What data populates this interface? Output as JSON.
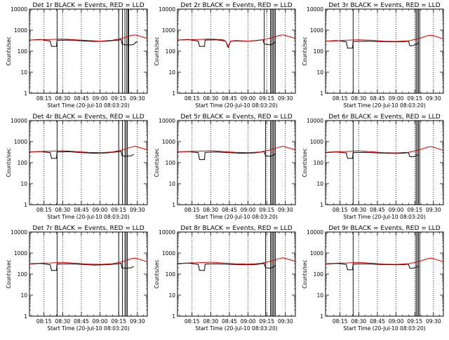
{
  "chart_data": [
    {
      "type": "line",
      "title": "Det 1r BLACK = Events, RED = LLD",
      "xlabel": "Start Time (20-Jul-10 08:03:20)",
      "ylabel": "Counts/sec",
      "ylim": [
        1,
        10000
      ],
      "yscale": "log",
      "yticks": [
        "1",
        "10",
        "100",
        "1000",
        "10000"
      ],
      "xticks": [
        "08:15",
        "08:30",
        "08:45",
        "09:00",
        "09:15",
        "09:30"
      ],
      "xlim_minutes": [
        3.333,
        98
      ],
      "series": [
        {
          "name": "Events",
          "color": "#000000",
          "x": [
            3.5,
            12,
            20,
            21,
            25,
            25.5,
            35,
            45,
            55,
            65,
            75,
            77,
            77.5,
            80,
            85,
            87,
            88,
            89,
            90
          ],
          "y": [
            340,
            360,
            300,
            170,
            170,
            330,
            340,
            310,
            290,
            300,
            340,
            360,
            230,
            200,
            200,
            210,
            240,
            280,
            260
          ]
        },
        {
          "name": "LLD",
          "color": "#dd0000",
          "x": [
            3.5,
            12,
            20,
            30,
            40,
            50,
            60,
            70,
            75,
            80,
            85,
            88,
            90,
            95,
            98
          ],
          "y": [
            340,
            350,
            360,
            380,
            350,
            320,
            300,
            330,
            380,
            450,
            560,
            600,
            560,
            460,
            400
          ]
        }
      ],
      "vlines_solid": [
        25.5,
        75,
        78,
        80,
        81.5,
        82.5,
        83
      ],
      "vlines_dotted": [
        15,
        30,
        45,
        60,
        75,
        90
      ]
    },
    {
      "type": "line",
      "title": "Det 2r BLACK = Events, RED = LLD",
      "xlabel": "Start Time (20-Jul-10 08:03:20)",
      "ylabel": "Counts/sec",
      "ylim": [
        1,
        10000
      ],
      "yscale": "log",
      "yticks": [
        "1",
        "10",
        "100",
        "1000",
        "10000"
      ],
      "xticks": [
        "08:15",
        "08:30",
        "08:45",
        "09:00",
        "09:15",
        "09:30"
      ],
      "xlim_minutes": [
        3.333,
        98
      ],
      "series": [
        {
          "name": "Events",
          "color": "#000000",
          "x": [
            3.5,
            12,
            20,
            21,
            25,
            25.5,
            35,
            42,
            44,
            46,
            50,
            60,
            72,
            73,
            78,
            80,
            82
          ],
          "y": [
            340,
            360,
            300,
            170,
            170,
            340,
            350,
            300,
            150,
            300,
            310,
            300,
            350,
            220,
            200,
            220,
            280
          ]
        },
        {
          "name": "LLD",
          "color": "#dd0000",
          "x": [
            3.5,
            12,
            20,
            30,
            40,
            42,
            44,
            46,
            50,
            60,
            70,
            75,
            80,
            85,
            88,
            90,
            95,
            98
          ],
          "y": [
            340,
            350,
            360,
            380,
            350,
            300,
            170,
            300,
            320,
            300,
            330,
            380,
            450,
            560,
            600,
            560,
            460,
            400
          ]
        }
      ],
      "vlines_solid": [
        73,
        78,
        79,
        80,
        81,
        82
      ],
      "vlines_dotted": [
        15,
        30,
        45,
        60,
        75,
        90
      ]
    },
    {
      "type": "line",
      "title": "Det 3r BLACK = Events, RED = LLD",
      "xlabel": "Start Time (20-Jul-10 08:03:20)",
      "ylabel": "Counts/sec",
      "ylim": [
        1,
        10000
      ],
      "yscale": "log",
      "yticks": [
        "1",
        "10",
        "100",
        "1000",
        "10000"
      ],
      "xticks": [
        "08:15",
        "08:30",
        "08:45",
        "09:00",
        "09:15",
        "09:30"
      ],
      "xlim_minutes": [
        3.333,
        98
      ],
      "series": [
        {
          "name": "Events",
          "color": "#000000",
          "x": [
            3.5,
            12,
            20,
            21,
            25,
            25.5,
            35,
            45,
            55,
            65,
            70,
            71,
            73,
            75,
            77,
            78
          ],
          "y": [
            300,
            320,
            280,
            140,
            140,
            290,
            300,
            290,
            280,
            280,
            300,
            180,
            180,
            200,
            220,
            250
          ]
        },
        {
          "name": "LLD",
          "color": "#dd0000",
          "x": [
            3.5,
            12,
            20,
            30,
            40,
            50,
            60,
            70,
            75,
            80,
            85,
            88,
            90,
            95,
            98
          ],
          "y": [
            300,
            310,
            330,
            350,
            330,
            300,
            290,
            310,
            360,
            430,
            540,
            580,
            540,
            440,
            380
          ]
        }
      ],
      "vlines_solid": [
        25.5,
        76,
        77,
        78,
        79
      ],
      "vlines_dotted": [
        15,
        30,
        45,
        60,
        75,
        90
      ]
    },
    {
      "type": "line",
      "title": "Det 4r BLACK = Events, RED = LLD",
      "xlabel": "Start Time (20-Jul-10 08:03:20)",
      "ylabel": "Counts/sec",
      "ylim": [
        1,
        10000
      ],
      "yscale": "log",
      "yticks": [
        "1",
        "10",
        "100",
        "1000",
        "10000"
      ],
      "xticks": [
        "08:15",
        "08:30",
        "08:45",
        "09:00",
        "09:15",
        "09:30"
      ],
      "xlim_minutes": [
        3.333,
        98
      ],
      "series": [
        {
          "name": "Events",
          "color": "#000000",
          "x": [
            3.5,
            12,
            20,
            21,
            25,
            25.5,
            35,
            45,
            55,
            65,
            75,
            77,
            77.5,
            80,
            85,
            87
          ],
          "y": [
            320,
            340,
            300,
            160,
            160,
            320,
            330,
            300,
            280,
            290,
            330,
            350,
            220,
            200,
            210,
            250
          ]
        },
        {
          "name": "LLD",
          "color": "#dd0000",
          "x": [
            3.5,
            12,
            20,
            30,
            40,
            50,
            60,
            70,
            75,
            80,
            85,
            88,
            90,
            95,
            98
          ],
          "y": [
            320,
            340,
            350,
            370,
            340,
            310,
            300,
            320,
            370,
            440,
            550,
            600,
            560,
            460,
            400
          ]
        }
      ],
      "vlines_solid": [
        25.5,
        75,
        78,
        80,
        81,
        82
      ],
      "vlines_dotted": [
        15,
        30,
        45,
        60,
        75,
        90
      ]
    },
    {
      "type": "line",
      "title": "Det 5r BLACK = Events, RED = LLD",
      "xlabel": "Start Time (20-Jul-10 08:03:20)",
      "ylabel": "Counts/sec",
      "ylim": [
        1,
        10000
      ],
      "yscale": "log",
      "yticks": [
        "1",
        "10",
        "100",
        "1000",
        "10000"
      ],
      "xticks": [
        "08:15",
        "08:30",
        "08:45",
        "09:00",
        "09:15",
        "09:30"
      ],
      "xlim_minutes": [
        3.333,
        98
      ],
      "series": [
        {
          "name": "Events",
          "color": "#000000",
          "x": [
            3.5,
            12,
            20,
            21,
            25,
            25.5,
            35,
            45,
            55,
            65,
            73,
            74,
            78,
            80,
            82
          ],
          "y": [
            320,
            340,
            300,
            140,
            140,
            310,
            320,
            300,
            280,
            290,
            330,
            210,
            200,
            220,
            270
          ]
        },
        {
          "name": "LLD",
          "color": "#dd0000",
          "x": [
            3.5,
            12,
            20,
            30,
            40,
            50,
            60,
            70,
            75,
            80,
            85,
            88,
            90,
            95,
            98
          ],
          "y": [
            320,
            340,
            350,
            370,
            340,
            310,
            300,
            320,
            370,
            440,
            550,
            600,
            560,
            460,
            400
          ]
        }
      ],
      "vlines_solid": [
        74,
        78,
        79,
        80,
        81,
        82
      ],
      "vlines_dotted": [
        15,
        30,
        45,
        60,
        75,
        90
      ]
    },
    {
      "type": "line",
      "title": "Det 6r BLACK = Events, RED = LLD",
      "xlabel": "Start Time (20-Jul-10 08:03:20)",
      "ylabel": "Counts/sec",
      "ylim": [
        1,
        10000
      ],
      "yscale": "log",
      "yticks": [
        "1",
        "10",
        "100",
        "1000",
        "10000"
      ],
      "xticks": [
        "08:15",
        "08:30",
        "08:45",
        "09:00",
        "09:15",
        "09:30"
      ],
      "xlim_minutes": [
        3.333,
        98
      ],
      "series": [
        {
          "name": "Events",
          "color": "#000000",
          "x": [
            3.5,
            12,
            20,
            21,
            25,
            25.5,
            35,
            45,
            55,
            65,
            70,
            71,
            74,
            76,
            78
          ],
          "y": [
            300,
            320,
            290,
            160,
            160,
            300,
            310,
            290,
            280,
            280,
            300,
            190,
            190,
            210,
            240
          ]
        },
        {
          "name": "LLD",
          "color": "#dd0000",
          "x": [
            3.5,
            12,
            20,
            30,
            40,
            50,
            60,
            70,
            75,
            80,
            85,
            88,
            90,
            95,
            98
          ],
          "y": [
            310,
            330,
            340,
            360,
            330,
            300,
            290,
            310,
            360,
            430,
            540,
            580,
            540,
            440,
            380
          ]
        }
      ],
      "vlines_solid": [
        25.5,
        76,
        77,
        78,
        79
      ],
      "vlines_dotted": [
        15,
        30,
        45,
        60,
        75,
        90
      ]
    },
    {
      "type": "line",
      "title": "Det 7r BLACK = Events, RED = LLD",
      "xlabel": "Start Time (20-Jul-10 08:03:20)",
      "ylabel": "Counts/sec",
      "ylim": [
        1,
        10000
      ],
      "yscale": "log",
      "yticks": [
        "1",
        "10",
        "100",
        "1000",
        "10000"
      ],
      "xticks": [
        "08:15",
        "08:30",
        "08:45",
        "09:00",
        "09:15",
        "09:30"
      ],
      "xlim_minutes": [
        3.333,
        98
      ],
      "series": [
        {
          "name": "Events",
          "color": "#000000",
          "x": [
            3.5,
            12,
            20,
            21,
            25,
            25.5,
            35,
            45,
            55,
            65,
            75,
            77,
            77.5,
            80,
            85,
            87
          ],
          "y": [
            300,
            320,
            280,
            150,
            150,
            300,
            310,
            290,
            270,
            280,
            310,
            330,
            200,
            190,
            200,
            230
          ]
        },
        {
          "name": "LLD",
          "color": "#dd0000",
          "x": [
            3.5,
            12,
            20,
            30,
            40,
            50,
            60,
            70,
            75,
            80,
            85,
            88,
            90,
            95,
            98
          ],
          "y": [
            310,
            330,
            340,
            360,
            330,
            300,
            290,
            310,
            360,
            430,
            540,
            580,
            540,
            440,
            380
          ]
        }
      ],
      "vlines_solid": [
        25.5,
        75,
        78,
        80,
        81,
        82
      ],
      "vlines_dotted": [
        15,
        30,
        45,
        60,
        75,
        90
      ]
    },
    {
      "type": "line",
      "title": "Det 8r BLACK = Events, RED = LLD",
      "xlabel": "Start Time (20-Jul-10 08:03:20)",
      "ylabel": "Counts/sec",
      "ylim": [
        1,
        10000
      ],
      "yscale": "log",
      "yticks": [
        "1",
        "10",
        "100",
        "1000",
        "10000"
      ],
      "xticks": [
        "08:15",
        "08:30",
        "08:45",
        "09:00",
        "09:15",
        "09:30"
      ],
      "xlim_minutes": [
        3.333,
        98
      ],
      "series": [
        {
          "name": "Events",
          "color": "#000000",
          "x": [
            3.5,
            12,
            20,
            21,
            25,
            25.5,
            35,
            45,
            55,
            65,
            73,
            74,
            78,
            80,
            82
          ],
          "y": [
            310,
            330,
            290,
            150,
            150,
            300,
            310,
            290,
            280,
            280,
            320,
            200,
            190,
            210,
            260
          ]
        },
        {
          "name": "LLD",
          "color": "#dd0000",
          "x": [
            3.5,
            12,
            20,
            30,
            40,
            50,
            60,
            70,
            75,
            80,
            85,
            88,
            90,
            95,
            98
          ],
          "y": [
            320,
            340,
            350,
            370,
            340,
            310,
            300,
            320,
            370,
            440,
            550,
            600,
            560,
            460,
            400
          ]
        }
      ],
      "vlines_solid": [
        74,
        78,
        79,
        80,
        81,
        82
      ],
      "vlines_dotted": [
        15,
        30,
        45,
        60,
        75,
        90
      ]
    },
    {
      "type": "line",
      "title": "Det 9r BLACK = Events, RED = LLD",
      "xlabel": "Start Time (20-Jul-10 08:03:20)",
      "ylabel": "Counts/sec",
      "ylim": [
        1,
        10000
      ],
      "yscale": "log",
      "yticks": [
        "1",
        "10",
        "100",
        "1000",
        "10000"
      ],
      "xticks": [
        "08:15",
        "08:30",
        "08:45",
        "09:00",
        "09:15",
        "09:30"
      ],
      "xlim_minutes": [
        3.333,
        98
      ],
      "series": [
        {
          "name": "Events",
          "color": "#000000",
          "x": [
            3.5,
            12,
            20,
            21,
            25,
            25.5,
            35,
            45,
            55,
            65,
            70,
            71,
            74,
            76,
            78
          ],
          "y": [
            300,
            320,
            290,
            160,
            160,
            300,
            310,
            290,
            280,
            280,
            300,
            190,
            190,
            210,
            240
          ]
        },
        {
          "name": "LLD",
          "color": "#dd0000",
          "x": [
            3.5,
            12,
            20,
            30,
            40,
            50,
            60,
            70,
            75,
            80,
            85,
            88,
            90,
            95,
            98
          ],
          "y": [
            310,
            330,
            340,
            360,
            330,
            300,
            290,
            310,
            360,
            430,
            540,
            580,
            540,
            440,
            380
          ]
        }
      ],
      "vlines_solid": [
        25.5,
        76,
        77,
        78,
        79
      ],
      "vlines_dotted": [
        15,
        30,
        45,
        60,
        75,
        90
      ]
    }
  ]
}
